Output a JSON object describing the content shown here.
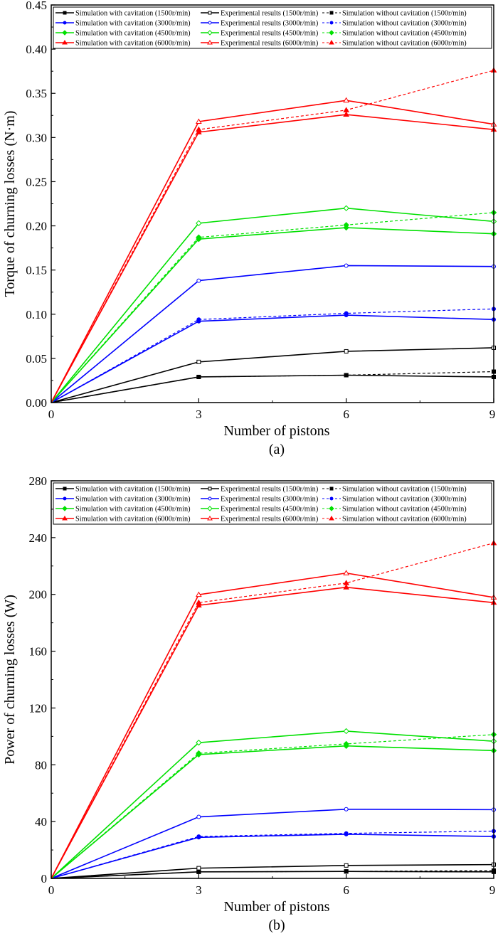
{
  "chart_data": [
    {
      "type": "line",
      "caption": "(a)",
      "xlabel": "Number of pistons",
      "ylabel": "Torque of churning losses (N·m)",
      "xlim": [
        0,
        9
      ],
      "ylim": [
        0,
        0.45
      ],
      "xticks": [
        "0",
        "3",
        "6",
        "9"
      ],
      "yticks": [
        "0.00",
        "0.05",
        "0.10",
        "0.15",
        "0.20",
        "0.25",
        "0.30",
        "0.35",
        "0.40",
        "0.45"
      ],
      "grid": false,
      "legend_placement": "top",
      "x": [
        0,
        3,
        6,
        9
      ],
      "series": [
        {
          "name": "Simulation with cavitation (1500r/min)",
          "color": "#000000",
          "marker": "square-filled",
          "style": "solid",
          "values": [
            0,
            0.029,
            0.031,
            0.029
          ]
        },
        {
          "name": "Experimental results (1500r/min)",
          "color": "#000000",
          "marker": "square-open",
          "style": "solid",
          "values": [
            0,
            0.046,
            0.058,
            0.062
          ]
        },
        {
          "name": "Simulation without cavitation (1500r/min)",
          "color": "#000000",
          "marker": "square-filled",
          "style": "dashed",
          "values": [
            0,
            0.029,
            0.031,
            0.035
          ]
        },
        {
          "name": "Simulation with cavitation (3000r/min)",
          "color": "#0000ff",
          "marker": "circle-filled",
          "style": "solid",
          "values": [
            0,
            0.092,
            0.099,
            0.094
          ]
        },
        {
          "name": "Experimental results (3000r/min)",
          "color": "#0000ff",
          "marker": "circle-open",
          "style": "solid",
          "values": [
            0,
            0.138,
            0.155,
            0.154
          ]
        },
        {
          "name": "Simulation without cavitation (3000r/min)",
          "color": "#0000ff",
          "marker": "circle-filled",
          "style": "dashed",
          "values": [
            0,
            0.094,
            0.101,
            0.106
          ]
        },
        {
          "name": "Simulation with cavitation (4500r/min)",
          "color": "#00e000",
          "marker": "diamond-filled",
          "style": "solid",
          "values": [
            0,
            0.185,
            0.198,
            0.191
          ]
        },
        {
          "name": "Experimental results (4500r/min)",
          "color": "#00e000",
          "marker": "diamond-open",
          "style": "solid",
          "values": [
            0,
            0.203,
            0.22,
            0.205
          ]
        },
        {
          "name": "Simulation without cavitation (4500r/min)",
          "color": "#00e000",
          "marker": "diamond-filled",
          "style": "dashed",
          "values": [
            0,
            0.187,
            0.201,
            0.215
          ]
        },
        {
          "name": "Simulation with cavitation (6000r/min)",
          "color": "#ff0000",
          "marker": "triangle-filled",
          "style": "solid",
          "values": [
            0,
            0.306,
            0.326,
            0.309
          ]
        },
        {
          "name": "Experimental results (6000r/min)",
          "color": "#ff0000",
          "marker": "triangle-open",
          "style": "solid",
          "values": [
            0,
            0.318,
            0.342,
            0.315
          ]
        },
        {
          "name": "Simulation without cavitation (6000r/min)",
          "color": "#ff0000",
          "marker": "triangle-filled",
          "style": "dashed",
          "values": [
            0,
            0.309,
            0.331,
            0.376
          ]
        }
      ]
    },
    {
      "type": "line",
      "caption": "(b)",
      "xlabel": "Number of pistons",
      "ylabel": "Power of churning losses (W)",
      "xlim": [
        0,
        9
      ],
      "ylim": [
        0,
        280
      ],
      "xticks": [
        "0",
        "3",
        "6",
        "9"
      ],
      "yticks": [
        "0",
        "40",
        "80",
        "120",
        "160",
        "200",
        "240",
        "280"
      ],
      "grid": false,
      "legend_placement": "top",
      "x": [
        0,
        3,
        6,
        9
      ],
      "series": [
        {
          "name": "Simulation with cavitation (1500r/min)",
          "color": "#000000",
          "marker": "square-filled",
          "style": "solid",
          "values": [
            0,
            4.6,
            4.9,
            4.6
          ]
        },
        {
          "name": "Experimental results (1500r/min)",
          "color": "#000000",
          "marker": "square-open",
          "style": "solid",
          "values": [
            0,
            7.2,
            9.1,
            9.7
          ]
        },
        {
          "name": "Simulation without cavitation (1500r/min)",
          "color": "#000000",
          "marker": "square-filled",
          "style": "dashed",
          "values": [
            0,
            4.6,
            4.9,
            5.5
          ]
        },
        {
          "name": "Simulation with cavitation (3000r/min)",
          "color": "#0000ff",
          "marker": "circle-filled",
          "style": "solid",
          "values": [
            0,
            28.9,
            31.1,
            29.5
          ]
        },
        {
          "name": "Experimental results (3000r/min)",
          "color": "#0000ff",
          "marker": "circle-open",
          "style": "solid",
          "values": [
            0,
            43.3,
            48.7,
            48.4
          ]
        },
        {
          "name": "Simulation without cavitation (3000r/min)",
          "color": "#0000ff",
          "marker": "circle-filled",
          "style": "dashed",
          "values": [
            0,
            29.5,
            31.7,
            33.3
          ]
        },
        {
          "name": "Simulation with cavitation (4500r/min)",
          "color": "#00e000",
          "marker": "diamond-filled",
          "style": "solid",
          "values": [
            0,
            87.2,
            93.3,
            90.0
          ]
        },
        {
          "name": "Experimental results (4500r/min)",
          "color": "#00e000",
          "marker": "diamond-open",
          "style": "solid",
          "values": [
            0,
            95.6,
            103.7,
            96.6
          ]
        },
        {
          "name": "Simulation without cavitation (4500r/min)",
          "color": "#00e000",
          "marker": "diamond-filled",
          "style": "dashed",
          "values": [
            0,
            88.1,
            94.7,
            101.3
          ]
        },
        {
          "name": "Simulation with cavitation (6000r/min)",
          "color": "#ff0000",
          "marker": "triangle-filled",
          "style": "solid",
          "values": [
            0,
            192.3,
            205.0,
            194.2
          ]
        },
        {
          "name": "Experimental results (6000r/min)",
          "color": "#ff0000",
          "marker": "triangle-open",
          "style": "solid",
          "values": [
            0,
            199.8,
            215.0,
            197.9
          ]
        },
        {
          "name": "Simulation without cavitation (6000r/min)",
          "color": "#ff0000",
          "marker": "triangle-filled",
          "style": "dashed",
          "values": [
            0,
            194.2,
            208.0,
            236.2
          ]
        }
      ]
    }
  ]
}
